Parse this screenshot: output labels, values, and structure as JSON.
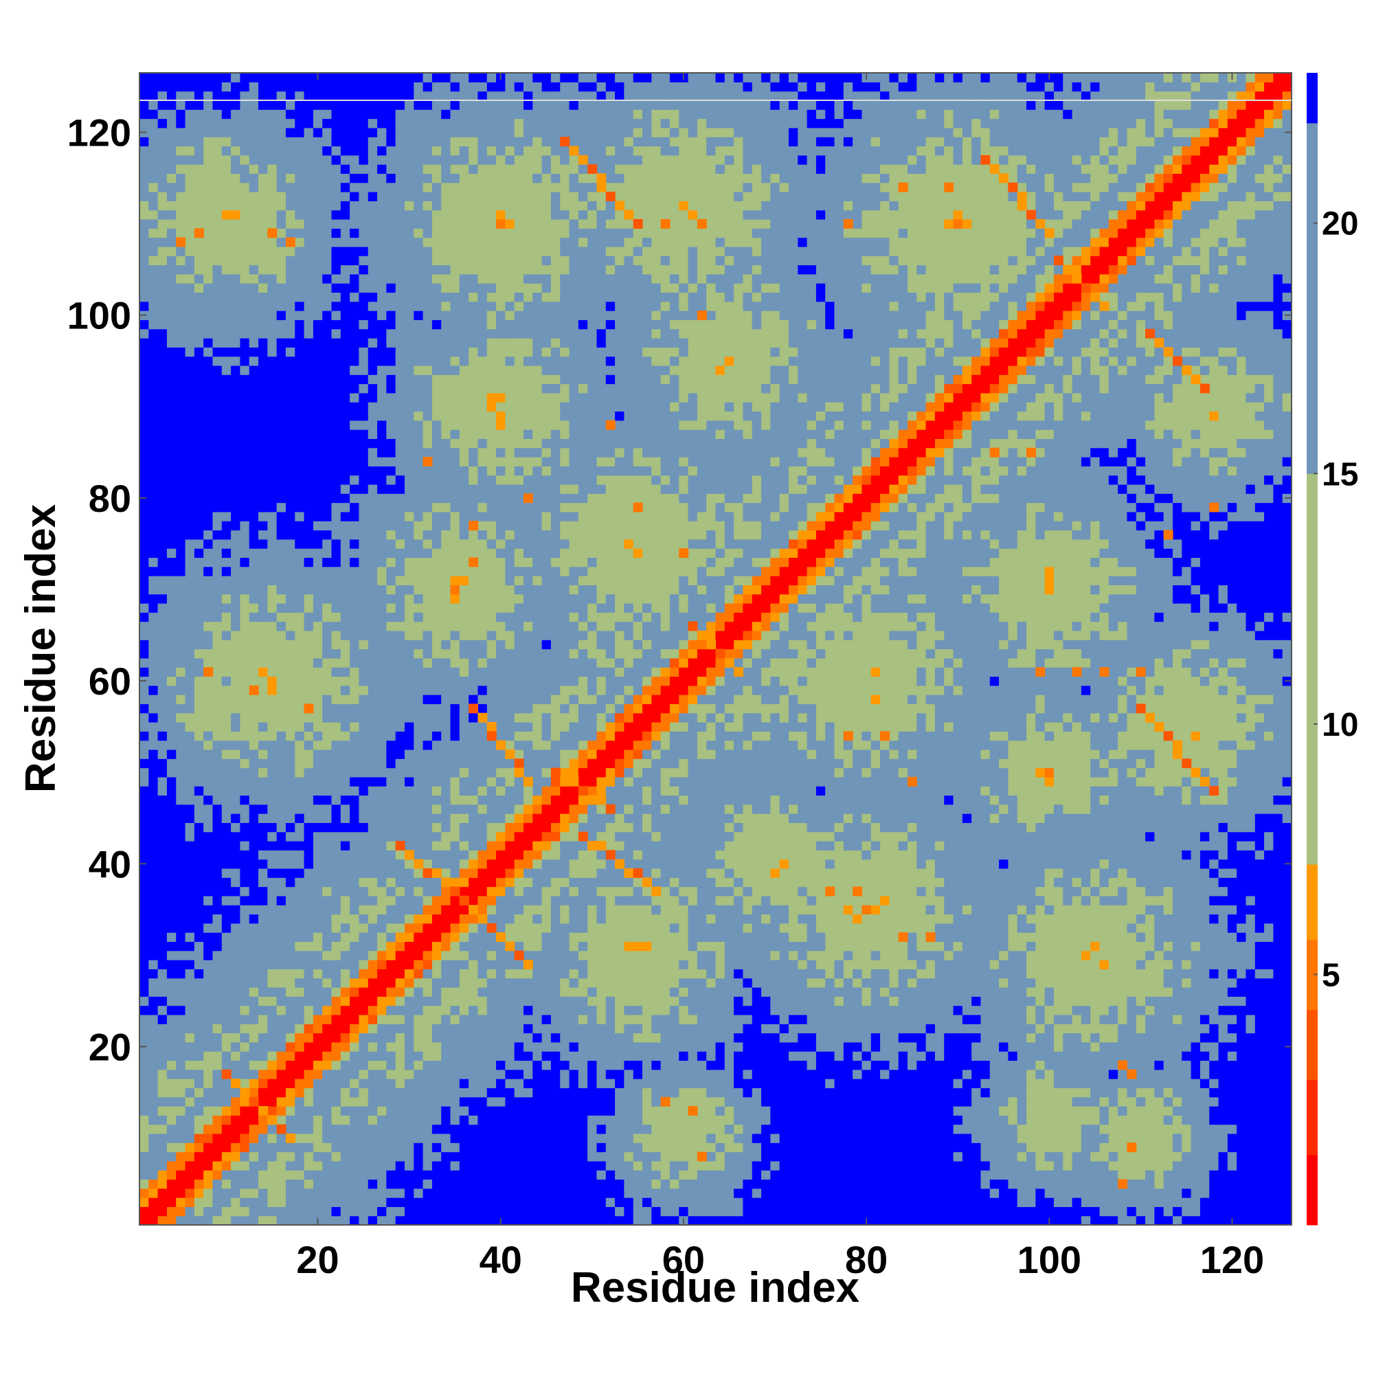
{
  "chart_data": {
    "type": "heatmap",
    "title": "",
    "xlabel": "Residue index",
    "ylabel": "Residue index",
    "n_residues": 126,
    "xlim": [
      0.5,
      126.5
    ],
    "ylim": [
      0.5,
      126.5
    ],
    "x_ticks": [
      20,
      40,
      60,
      80,
      100,
      120
    ],
    "y_ticks": [
      20,
      40,
      60,
      80,
      100,
      120
    ],
    "x_tick_labels": [
      "20",
      "40",
      "60",
      "80",
      "100",
      "120"
    ],
    "y_tick_labels": [
      "20",
      "40",
      "60",
      "80",
      "100",
      "120"
    ],
    "colorbar": {
      "range": [
        0,
        23
      ],
      "ticks": [
        5,
        10,
        15,
        20
      ],
      "tick_labels": [
        "5",
        "10",
        "15",
        "20"
      ],
      "colors": [
        {
          "min": 0,
          "max": 1.4,
          "color": "#ff0000"
        },
        {
          "min": 1.4,
          "max": 2.9,
          "color": "#ff2a00"
        },
        {
          "min": 2.9,
          "max": 4.3,
          "color": "#ff5500"
        },
        {
          "min": 4.3,
          "max": 5.7,
          "color": "#ff7700"
        },
        {
          "min": 5.7,
          "max": 7.2,
          "color": "#ff9900"
        },
        {
          "min": 7.2,
          "max": 15.0,
          "color": "#a8c080"
        },
        {
          "min": 15.0,
          "max": 22.0,
          "color": "#6f95b8"
        },
        {
          "min": 22.0,
          "max": 23.0,
          "color": "#0000ff"
        }
      ]
    },
    "description_values": "pairwise residue distance map; diagonal near 0, saturated blue above 22",
    "contact_segments": [
      {
        "x0": 10,
        "y0": 17,
        "x1": 17,
        "y1": 10
      },
      {
        "x0": 29,
        "y0": 42,
        "x1": 36,
        "y1": 36
      },
      {
        "x0": 36,
        "y0": 36,
        "x1": 43,
        "y1": 29
      },
      {
        "x0": 37,
        "y0": 57,
        "x1": 43,
        "y1": 49
      },
      {
        "x0": 49,
        "y0": 43,
        "x1": 57,
        "y1": 37
      },
      {
        "x0": 46,
        "y0": 50,
        "x1": 52,
        "y1": 46
      },
      {
        "x0": 61,
        "y0": 66,
        "x1": 66,
        "y1": 61
      },
      {
        "x0": 47,
        "y0": 119,
        "x1": 55,
        "y1": 110
      },
      {
        "x0": 93,
        "y0": 117,
        "x1": 100,
        "y1": 109
      },
      {
        "x0": 110,
        "y0": 57,
        "x1": 118,
        "y1": 48
      },
      {
        "x0": 111,
        "y0": 98,
        "x1": 117,
        "y1": 92
      },
      {
        "x0": 101,
        "y0": 106,
        "x1": 106,
        "y1": 101
      }
    ],
    "contact_spots": [
      {
        "x": 5,
        "y": 108
      },
      {
        "x": 7,
        "y": 109
      },
      {
        "x": 15,
        "y": 109
      },
      {
        "x": 17,
        "y": 108
      },
      {
        "x": 8,
        "y": 61
      },
      {
        "x": 13,
        "y": 59
      },
      {
        "x": 19,
        "y": 57
      },
      {
        "x": 32,
        "y": 84
      },
      {
        "x": 37,
        "y": 77
      },
      {
        "x": 37,
        "y": 73
      },
      {
        "x": 43,
        "y": 80
      },
      {
        "x": 52,
        "y": 88
      },
      {
        "x": 55,
        "y": 79
      },
      {
        "x": 60,
        "y": 74
      },
      {
        "x": 58,
        "y": 110
      },
      {
        "x": 62,
        "y": 110
      },
      {
        "x": 62,
        "y": 100
      },
      {
        "x": 78,
        "y": 54
      },
      {
        "x": 82,
        "y": 54
      },
      {
        "x": 85,
        "y": 49
      },
      {
        "x": 76,
        "y": 37
      },
      {
        "x": 79,
        "y": 37
      },
      {
        "x": 84,
        "y": 32
      },
      {
        "x": 87,
        "y": 32
      },
      {
        "x": 98,
        "y": 85
      },
      {
        "x": 94,
        "y": 85
      },
      {
        "x": 99,
        "y": 61
      },
      {
        "x": 103,
        "y": 61
      },
      {
        "x": 106,
        "y": 61
      },
      {
        "x": 110,
        "y": 61
      },
      {
        "x": 108,
        "y": 18
      },
      {
        "x": 109,
        "y": 17
      },
      {
        "x": 109,
        "y": 9
      },
      {
        "x": 108,
        "y": 5
      },
      {
        "x": 58,
        "y": 14
      },
      {
        "x": 61,
        "y": 13
      },
      {
        "x": 62,
        "y": 8
      },
      {
        "x": 113,
        "y": 76
      },
      {
        "x": 118,
        "y": 79
      },
      {
        "x": 89,
        "y": 114
      },
      {
        "x": 84,
        "y": 114
      },
      {
        "x": 78,
        "y": 110
      }
    ]
  }
}
